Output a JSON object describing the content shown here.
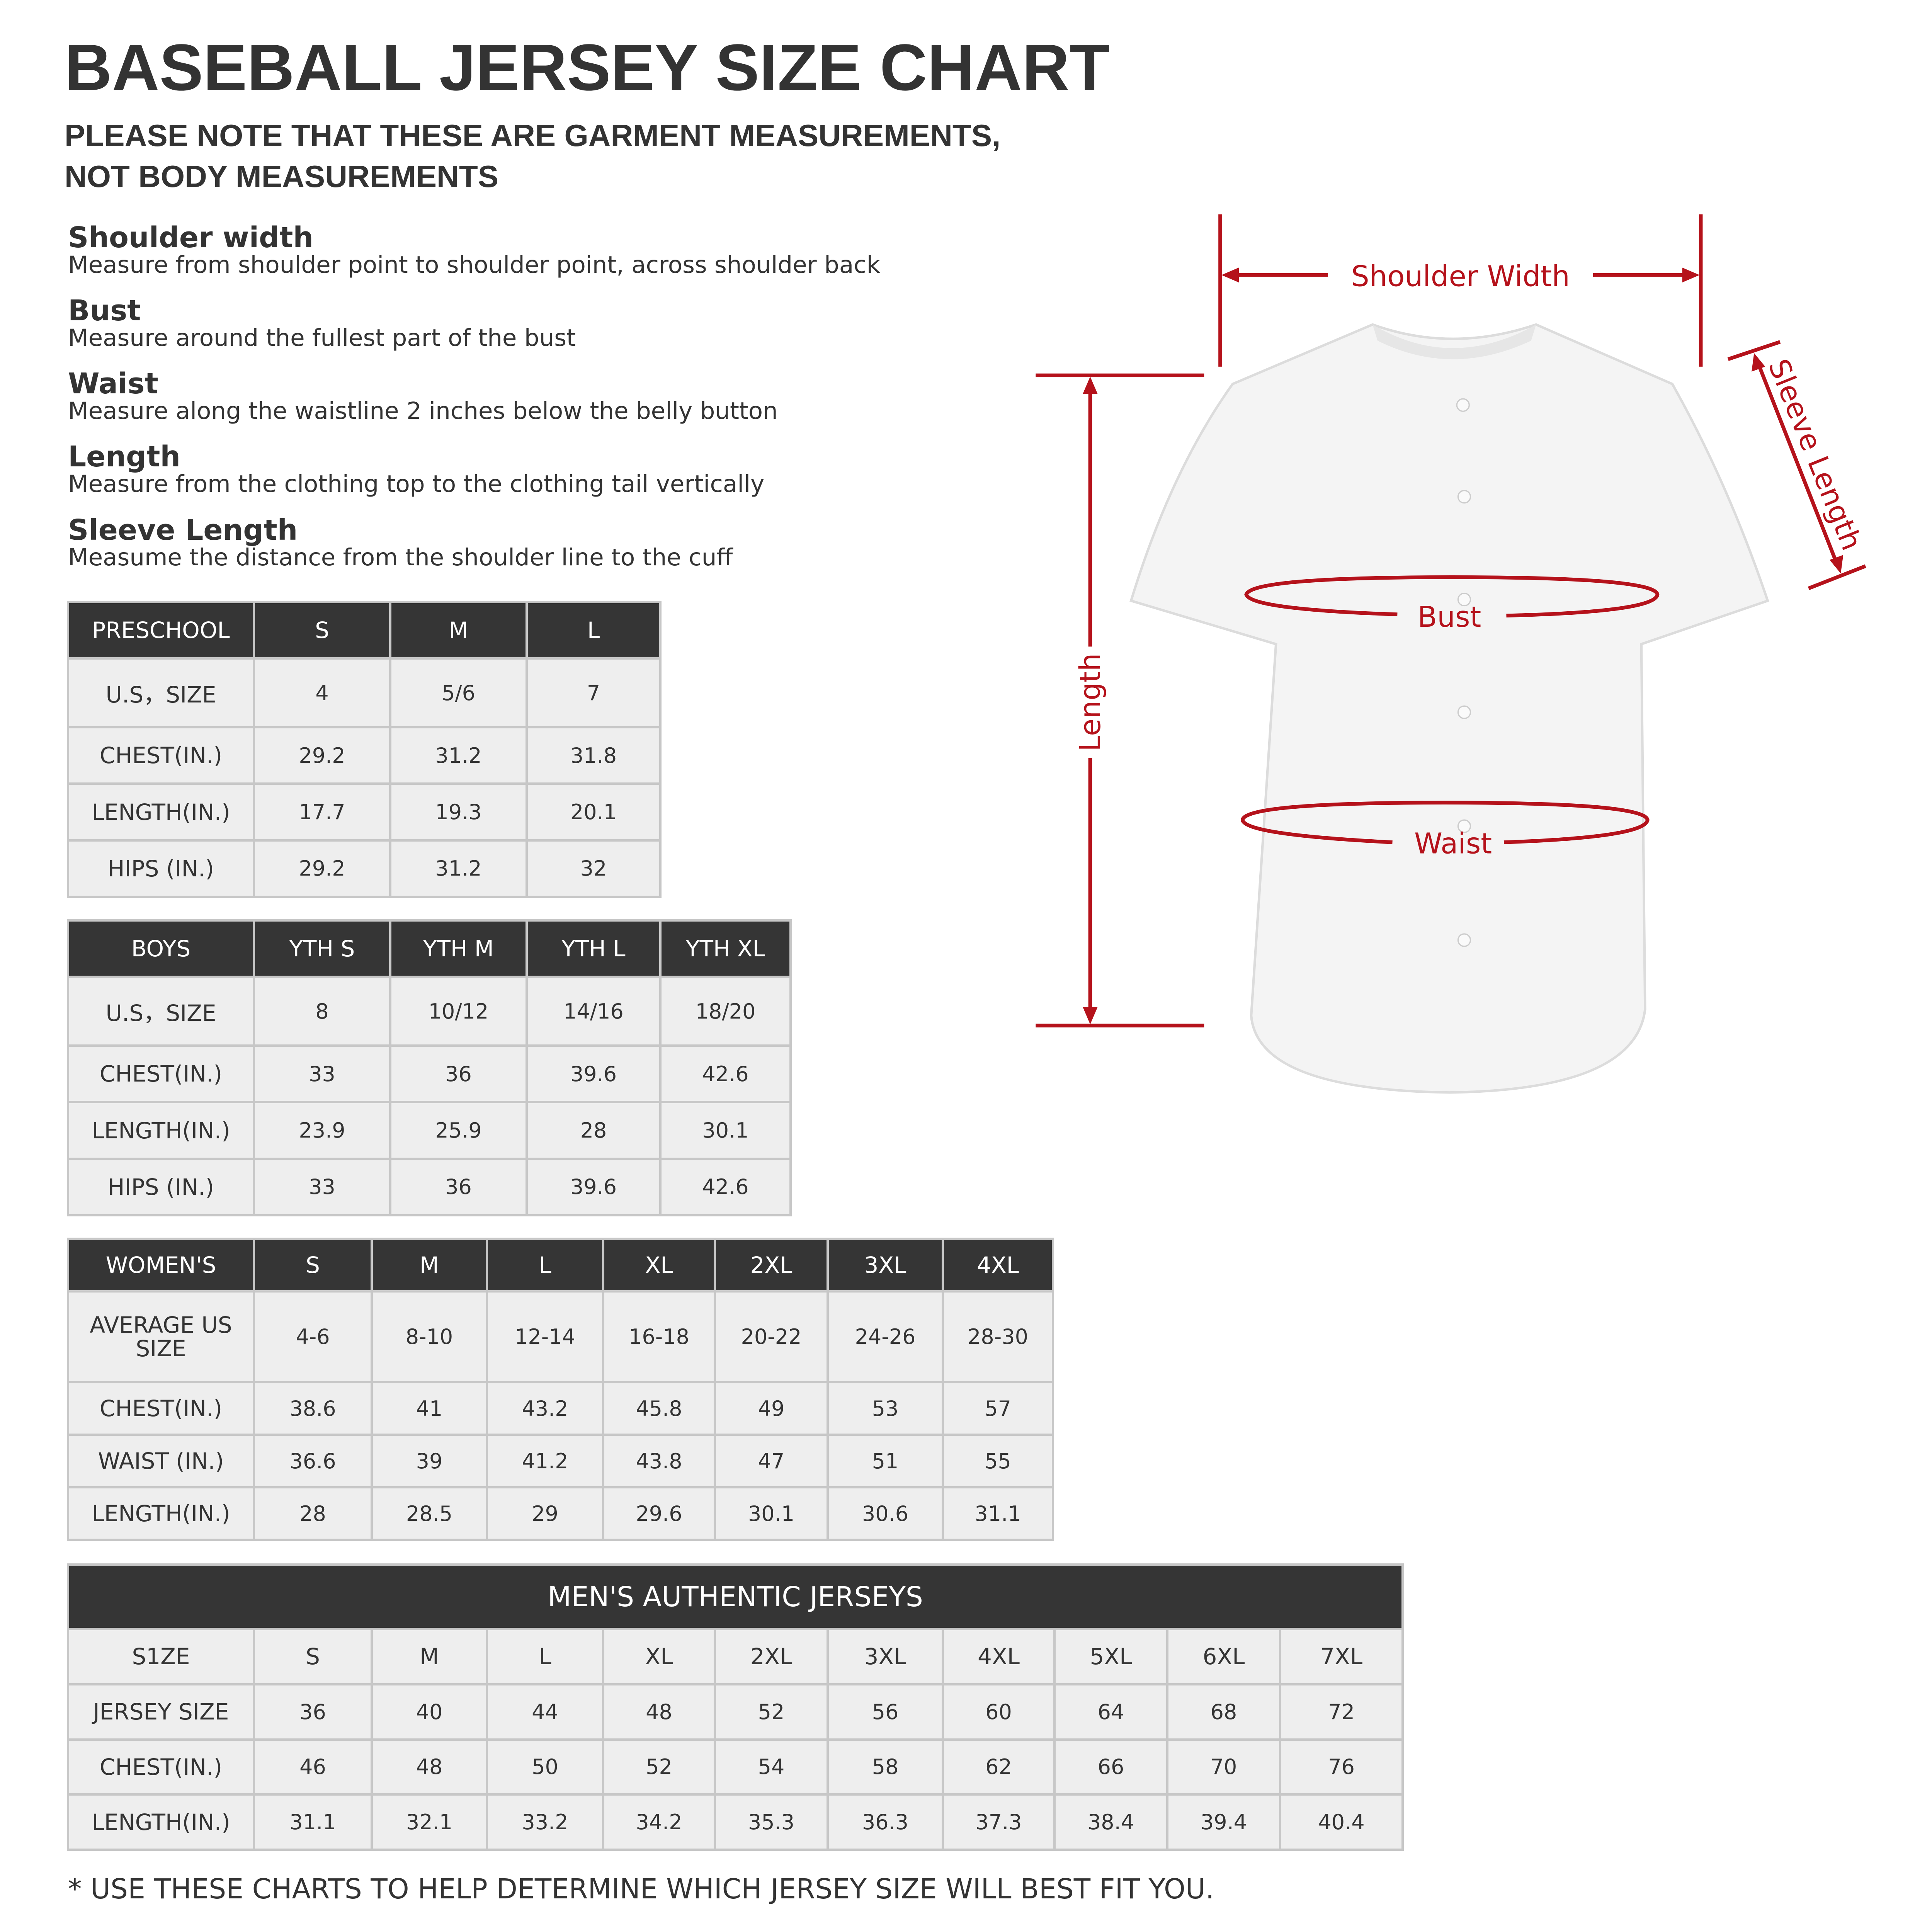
{
  "title": "BASEBALL JERSEY SIZE CHART",
  "subtitle": "PLEASE NOTE THAT THESE ARE GARMENT MEASUREMENTS,\nNOT BODY MEASUREMENTS",
  "definitions": [
    {
      "term": "Shoulder width",
      "text": "Measure from shoulder point to shoulder point, across shoulder back"
    },
    {
      "term": "Bust",
      "text": "Measure around the fullest part of the bust"
    },
    {
      "term": "Waist",
      "text": "Measure along the waistline 2 inches below the belly button"
    },
    {
      "term": "Length",
      "text": "Measure from the clothing top to the clothing tail vertically"
    },
    {
      "term": "Sleeve Length",
      "text": "Measume the distance from the shoulder line to the cuff"
    }
  ],
  "preschool": {
    "header": [
      "PRESCHOOL",
      "S",
      "M",
      "L"
    ],
    "rows": [
      [
        "U.S，SIZE",
        "4",
        "5/6",
        "7"
      ],
      [
        "CHEST(IN.)",
        "29.2",
        "31.2",
        "31.8"
      ],
      [
        "LENGTH(IN.)",
        "17.7",
        "19.3",
        "20.1"
      ],
      [
        "HIPS (IN.)",
        "29.2",
        "31.2",
        "32"
      ]
    ]
  },
  "boys": {
    "header": [
      "BOYS",
      "YTH S",
      "YTH M",
      "YTH L",
      "YTH XL"
    ],
    "rows": [
      [
        "U.S，SIZE",
        "8",
        "10/12",
        "14/16",
        "18/20"
      ],
      [
        "CHEST(IN.)",
        "33",
        "36",
        "39.6",
        "42.6"
      ],
      [
        "LENGTH(IN.)",
        "23.9",
        "25.9",
        "28",
        "30.1"
      ],
      [
        "HIPS (IN.)",
        "33",
        "36",
        "39.6",
        "42.6"
      ]
    ]
  },
  "womens": {
    "header": [
      "WOMEN'S",
      "S",
      "M",
      "L",
      "XL",
      "2XL",
      "3XL",
      "4XL"
    ],
    "rows": [
      [
        "AVERAGE US SIZE",
        "4-6",
        "8-10",
        "12-14",
        "16-18",
        "20-22",
        "24-26",
        "28-30"
      ],
      [
        "CHEST(IN.)",
        "38.6",
        "41",
        "43.2",
        "45.8",
        "49",
        "53",
        "57"
      ],
      [
        "WAIST (IN.)",
        "36.6",
        "39",
        "41.2",
        "43.8",
        "47",
        "51",
        "55"
      ],
      [
        "LENGTH(IN.)",
        "28",
        "28.5",
        "29",
        "29.6",
        "30.1",
        "30.6",
        "31.1"
      ]
    ]
  },
  "mens": {
    "title": "MEN'S AUTHENTIC JERSEYS",
    "header": [
      "S1ZE",
      "S",
      "M",
      "L",
      "XL",
      "2XL",
      "3XL",
      "4XL",
      "5XL",
      "6XL",
      "7XL"
    ],
    "rows": [
      [
        "JERSEY SIZE",
        "36",
        "40",
        "44",
        "48",
        "52",
        "56",
        "60",
        "64",
        "68",
        "72"
      ],
      [
        "CHEST(IN.)",
        "46",
        "48",
        "50",
        "52",
        "54",
        "58",
        "62",
        "66",
        "70",
        "76"
      ],
      [
        "LENGTH(IN.)",
        "31.1",
        "32.1",
        "33.2",
        "34.2",
        "35.3",
        "36.3",
        "37.3",
        "38.4",
        "39.4",
        "40.4"
      ]
    ]
  },
  "diagram": {
    "shoulder_width": "Shoulder Width",
    "sleeve_length": "Sleeve Length",
    "length": "Length",
    "bust": "Bust",
    "waist": "Waist",
    "accent_color": "#b5121b"
  },
  "footnote": "* USE THESE CHARTS TO HELP DETERMINE WHICH JERSEY SIZE WILL BEST FIT YOU."
}
